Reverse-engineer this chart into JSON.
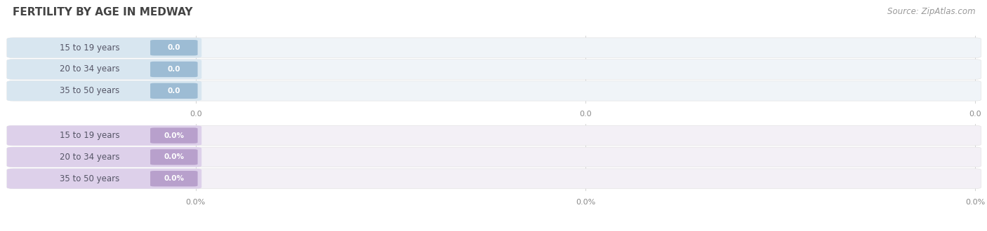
{
  "title": "FERTILITY BY AGE IN MEDWAY",
  "source": "Source: ZipAtlas.com",
  "top_section": {
    "categories": [
      "15 to 19 years",
      "20 to 34 years",
      "35 to 50 years"
    ],
    "values": [
      0.0,
      0.0,
      0.0
    ],
    "bar_bg_color": "#f0f4f8",
    "label_bg_color": "#d8e6f0",
    "value_bg_color": "#9dbcd4",
    "text_color": "#555566",
    "value_text_color": "#ffffff",
    "tick_labels": [
      "0.0",
      "0.0",
      "0.0"
    ]
  },
  "bottom_section": {
    "categories": [
      "15 to 19 years",
      "20 to 34 years",
      "35 to 50 years"
    ],
    "values": [
      0.0,
      0.0,
      0.0
    ],
    "bar_bg_color": "#f3f0f6",
    "label_bg_color": "#ddd0ea",
    "value_bg_color": "#b8a0cc",
    "text_color": "#555566",
    "value_text_color": "#ffffff",
    "tick_labels": [
      "0.0%",
      "0.0%",
      "0.0%"
    ]
  },
  "fig_bg_color": "#ffffff",
  "grid_color": "#cccccc",
  "title_color": "#444444",
  "source_color": "#999999",
  "title_fontsize": 11,
  "source_fontsize": 8.5,
  "label_fontsize": 8.5,
  "value_fontsize": 7.5,
  "tick_fontsize": 8
}
